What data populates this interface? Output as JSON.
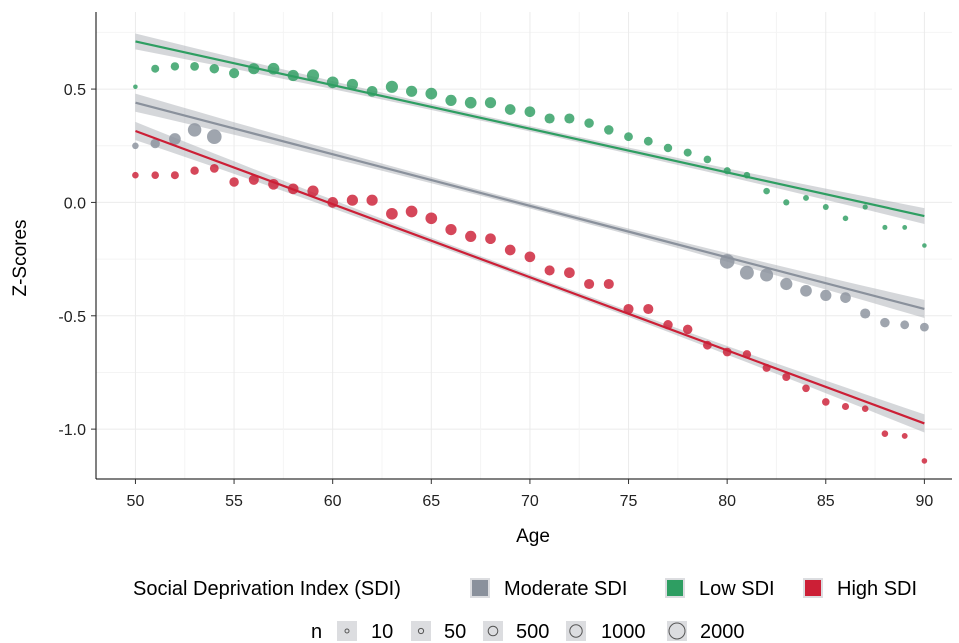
{
  "chart_data": {
    "type": "scatter",
    "xlabel": "Age",
    "ylabel": "Z-Scores",
    "xlim": [
      48,
      91.4
    ],
    "ylim": [
      -1.22,
      0.84
    ],
    "x_ticks": [
      50,
      55,
      60,
      65,
      70,
      75,
      80,
      85,
      90
    ],
    "x_tick_labels": [
      "50",
      "55",
      "60",
      "65",
      "70",
      "75",
      "80",
      "85",
      "90"
    ],
    "y_ticks": [
      0.5,
      0.0,
      -0.5,
      -1.0
    ],
    "y_tick_labels": [
      "0.5",
      "0.0",
      "-0.5",
      "-1.0"
    ],
    "grid": true,
    "legend": {
      "position": "bottom",
      "color_title": "Social Deprivation Index (SDI)",
      "color_entries": [
        {
          "label": "Moderate SDI",
          "color": "#8a919c"
        },
        {
          "label": "Low SDI",
          "color": "#2e9e62"
        },
        {
          "label": "High SDI",
          "color": "#cc1f36"
        }
      ],
      "size_title": "n",
      "size_entries": [
        {
          "label": "10",
          "n": 10
        },
        {
          "label": "50",
          "n": 50
        },
        {
          "label": "500",
          "n": 500
        },
        {
          "label": "1000",
          "n": 1000
        },
        {
          "label": "2000",
          "n": 2000
        }
      ]
    },
    "series": [
      {
        "name": "Low SDI",
        "color": "#2e9e62",
        "fit": {
          "x": [
            50,
            90
          ],
          "y": [
            0.71,
            -0.06
          ],
          "ci_halfwidth_ends": 0.035,
          "ci_halfwidth_mid": 0.012
        },
        "points": [
          {
            "x": 50,
            "y": 0.51,
            "n": 30
          },
          {
            "x": 51,
            "y": 0.59,
            "n": 300
          },
          {
            "x": 52,
            "y": 0.6,
            "n": 350
          },
          {
            "x": 53,
            "y": 0.6,
            "n": 400
          },
          {
            "x": 54,
            "y": 0.59,
            "n": 500
          },
          {
            "x": 55,
            "y": 0.57,
            "n": 600
          },
          {
            "x": 56,
            "y": 0.59,
            "n": 800
          },
          {
            "x": 57,
            "y": 0.59,
            "n": 900
          },
          {
            "x": 58,
            "y": 0.56,
            "n": 800
          },
          {
            "x": 59,
            "y": 0.56,
            "n": 1000
          },
          {
            "x": 60,
            "y": 0.53,
            "n": 900
          },
          {
            "x": 61,
            "y": 0.52,
            "n": 800
          },
          {
            "x": 62,
            "y": 0.49,
            "n": 700
          },
          {
            "x": 63,
            "y": 0.51,
            "n": 1000
          },
          {
            "x": 64,
            "y": 0.49,
            "n": 800
          },
          {
            "x": 65,
            "y": 0.48,
            "n": 900
          },
          {
            "x": 66,
            "y": 0.45,
            "n": 800
          },
          {
            "x": 67,
            "y": 0.44,
            "n": 900
          },
          {
            "x": 68,
            "y": 0.44,
            "n": 800
          },
          {
            "x": 69,
            "y": 0.41,
            "n": 700
          },
          {
            "x": 70,
            "y": 0.4,
            "n": 700
          },
          {
            "x": 71,
            "y": 0.37,
            "n": 600
          },
          {
            "x": 72,
            "y": 0.37,
            "n": 600
          },
          {
            "x": 73,
            "y": 0.35,
            "n": 500
          },
          {
            "x": 74,
            "y": 0.32,
            "n": 500
          },
          {
            "x": 75,
            "y": 0.29,
            "n": 400
          },
          {
            "x": 76,
            "y": 0.27,
            "n": 400
          },
          {
            "x": 77,
            "y": 0.24,
            "n": 350
          },
          {
            "x": 78,
            "y": 0.22,
            "n": 300
          },
          {
            "x": 79,
            "y": 0.19,
            "n": 250
          },
          {
            "x": 80,
            "y": 0.14,
            "n": 200
          },
          {
            "x": 81,
            "y": 0.12,
            "n": 150
          },
          {
            "x": 82,
            "y": 0.05,
            "n": 150
          },
          {
            "x": 83,
            "y": 0.0,
            "n": 120
          },
          {
            "x": 84,
            "y": 0.02,
            "n": 100
          },
          {
            "x": 85,
            "y": -0.02,
            "n": 100
          },
          {
            "x": 86,
            "y": -0.07,
            "n": 80
          },
          {
            "x": 87,
            "y": -0.02,
            "n": 60
          },
          {
            "x": 88,
            "y": -0.11,
            "n": 50
          },
          {
            "x": 89,
            "y": -0.11,
            "n": 40
          },
          {
            "x": 90,
            "y": -0.19,
            "n": 30
          }
        ]
      },
      {
        "name": "Moderate SDI",
        "color": "#8a919c",
        "fit": {
          "x": [
            50,
            90
          ],
          "y": [
            0.44,
            -0.47
          ],
          "ci_halfwidth_ends": 0.04,
          "ci_halfwidth_mid": 0.012
        },
        "points": [
          {
            "x": 50,
            "y": 0.25,
            "n": 150
          },
          {
            "x": 51,
            "y": 0.26,
            "n": 500
          },
          {
            "x": 52,
            "y": 0.28,
            "n": 900
          },
          {
            "x": 53,
            "y": 0.32,
            "n": 1300
          },
          {
            "x": 54,
            "y": 0.29,
            "n": 1600
          },
          {
            "x": 80,
            "y": -0.26,
            "n": 1600
          },
          {
            "x": 81,
            "y": -0.31,
            "n": 1400
          },
          {
            "x": 82,
            "y": -0.32,
            "n": 1200
          },
          {
            "x": 83,
            "y": -0.36,
            "n": 1000
          },
          {
            "x": 84,
            "y": -0.39,
            "n": 900
          },
          {
            "x": 85,
            "y": -0.41,
            "n": 800
          },
          {
            "x": 86,
            "y": -0.42,
            "n": 700
          },
          {
            "x": 87,
            "y": -0.49,
            "n": 600
          },
          {
            "x": 88,
            "y": -0.53,
            "n": 500
          },
          {
            "x": 89,
            "y": -0.54,
            "n": 400
          },
          {
            "x": 90,
            "y": -0.55,
            "n": 400
          }
        ]
      },
      {
        "name": "High SDI",
        "color": "#cc1f36",
        "fit": {
          "x": [
            50,
            90
          ],
          "y": [
            0.315,
            -0.975
          ],
          "ci_halfwidth_ends": 0.04,
          "ci_halfwidth_mid": 0.012
        },
        "points": [
          {
            "x": 50,
            "y": 0.12,
            "n": 150
          },
          {
            "x": 51,
            "y": 0.12,
            "n": 250
          },
          {
            "x": 52,
            "y": 0.12,
            "n": 300
          },
          {
            "x": 53,
            "y": 0.14,
            "n": 350
          },
          {
            "x": 54,
            "y": 0.15,
            "n": 400
          },
          {
            "x": 55,
            "y": 0.09,
            "n": 500
          },
          {
            "x": 56,
            "y": 0.1,
            "n": 600
          },
          {
            "x": 57,
            "y": 0.08,
            "n": 700
          },
          {
            "x": 58,
            "y": 0.06,
            "n": 700
          },
          {
            "x": 59,
            "y": 0.05,
            "n": 800
          },
          {
            "x": 60,
            "y": 0.0,
            "n": 700
          },
          {
            "x": 61,
            "y": 0.01,
            "n": 800
          },
          {
            "x": 62,
            "y": 0.01,
            "n": 800
          },
          {
            "x": 63,
            "y": -0.05,
            "n": 900
          },
          {
            "x": 64,
            "y": -0.04,
            "n": 900
          },
          {
            "x": 65,
            "y": -0.07,
            "n": 900
          },
          {
            "x": 66,
            "y": -0.12,
            "n": 800
          },
          {
            "x": 67,
            "y": -0.15,
            "n": 800
          },
          {
            "x": 68,
            "y": -0.16,
            "n": 700
          },
          {
            "x": 69,
            "y": -0.21,
            "n": 700
          },
          {
            "x": 70,
            "y": -0.24,
            "n": 700
          },
          {
            "x": 71,
            "y": -0.3,
            "n": 600
          },
          {
            "x": 72,
            "y": -0.31,
            "n": 700
          },
          {
            "x": 73,
            "y": -0.36,
            "n": 600
          },
          {
            "x": 74,
            "y": -0.36,
            "n": 600
          },
          {
            "x": 75,
            "y": -0.47,
            "n": 600
          },
          {
            "x": 76,
            "y": -0.47,
            "n": 600
          },
          {
            "x": 77,
            "y": -0.54,
            "n": 500
          },
          {
            "x": 78,
            "y": -0.56,
            "n": 500
          },
          {
            "x": 79,
            "y": -0.63,
            "n": 400
          },
          {
            "x": 80,
            "y": -0.66,
            "n": 400
          },
          {
            "x": 81,
            "y": -0.67,
            "n": 350
          },
          {
            "x": 82,
            "y": -0.73,
            "n": 300
          },
          {
            "x": 83,
            "y": -0.77,
            "n": 300
          },
          {
            "x": 84,
            "y": -0.82,
            "n": 250
          },
          {
            "x": 85,
            "y": -0.88,
            "n": 250
          },
          {
            "x": 86,
            "y": -0.9,
            "n": 200
          },
          {
            "x": 87,
            "y": -0.91,
            "n": 150
          },
          {
            "x": 88,
            "y": -1.02,
            "n": 150
          },
          {
            "x": 89,
            "y": -1.03,
            "n": 100
          },
          {
            "x": 90,
            "y": -1.14,
            "n": 80
          }
        ]
      }
    ]
  }
}
